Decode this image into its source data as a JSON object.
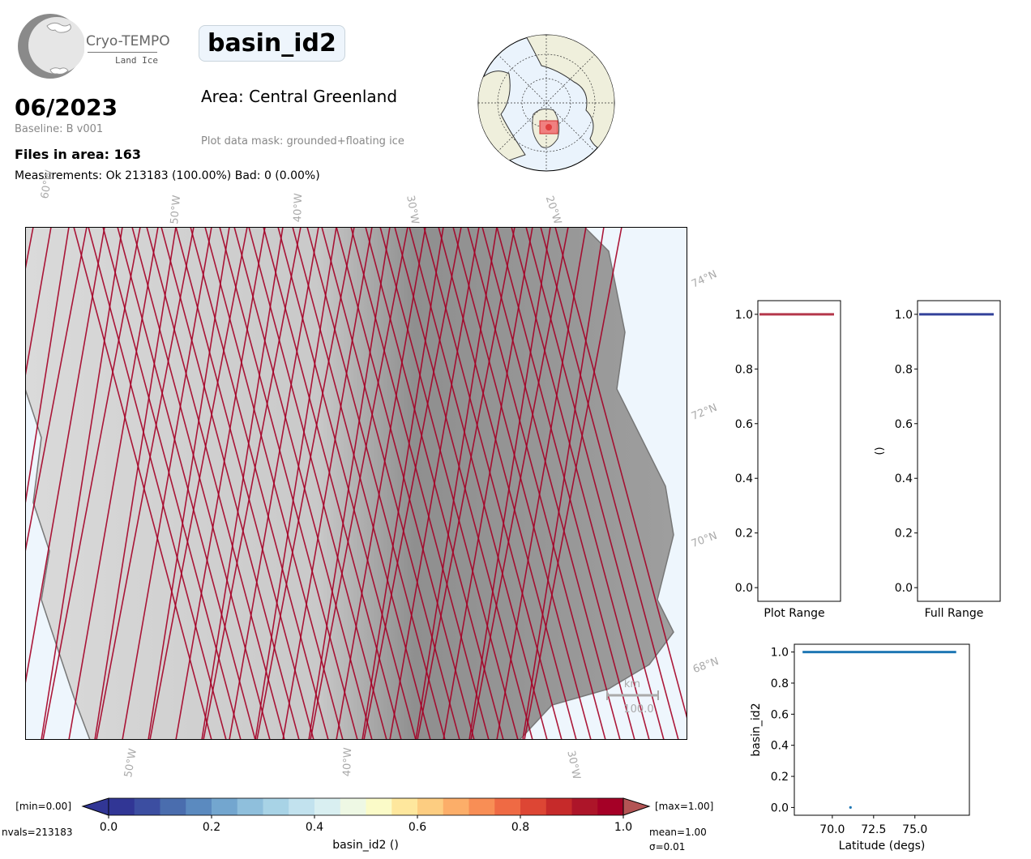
{
  "header": {
    "logo_title": "Cryo-TEMPO",
    "logo_subtitle": "Land Ice",
    "parameter": "basin_id2",
    "date": "06/2023",
    "baseline": "Baseline: B v001",
    "files": "Files in area: 163",
    "measurements": "Measurements: Ok 213183 (100.00%) Bad: 0 (0.00%)",
    "area": "Area: Central Greenland",
    "mask": "Plot data mask: grounded+floating ice"
  },
  "map": {
    "top_lon_labels": [
      "60°W",
      "50°W",
      "40°W",
      "30°W",
      "20°W"
    ],
    "bottom_lon_labels": [
      "50°W",
      "40°W",
      "30°W"
    ],
    "lat_labels": [
      "74°N",
      "72°N",
      "70°N",
      "68°N"
    ],
    "scale_unit": "km",
    "scale_value": "100.0",
    "track_color": "#a50026"
  },
  "colorbar": {
    "min_label": "[min=0.00]",
    "max_label": "[max=1.00]",
    "nvals": "nvals=213183",
    "mean": "mean=1.00",
    "sigma": "σ=0.01",
    "label": "basin_id2 ()",
    "ticks": [
      "0.0",
      "0.2",
      "0.4",
      "0.6",
      "0.8",
      "1.0"
    ],
    "colors": [
      "#313695",
      "#3c4ea1",
      "#4a6dae",
      "#5b8abf",
      "#73a6cf",
      "#8fbfdc",
      "#a8d3e6",
      "#c2e2ee",
      "#d9eff1",
      "#eef8e4",
      "#fbfbc8",
      "#fee79d",
      "#fdcd81",
      "#fcae69",
      "#f88e55",
      "#ef6a44",
      "#dd4634",
      "#c62a2a",
      "#ad1529",
      "#a50026"
    ],
    "under_color": "#313695",
    "over_color": "#b35454"
  },
  "chart_data": [
    {
      "type": "bar",
      "title": "",
      "xlabel": "Plot Range",
      "ylabel": "",
      "categories": [
        "Plot Range"
      ],
      "values": [
        1.0
      ],
      "ylim": [
        -0.05,
        1.05
      ],
      "yticks": [
        "0.0",
        "0.2",
        "0.4",
        "0.6",
        "0.8",
        "1.0"
      ],
      "color": "#b5374a"
    },
    {
      "type": "bar",
      "title": "",
      "xlabel": "Full Range",
      "ylabel": "()",
      "categories": [
        "Full Range"
      ],
      "values": [
        1.0
      ],
      "ylim": [
        -0.05,
        1.05
      ],
      "yticks": [
        "0.0",
        "0.2",
        "0.4",
        "0.6",
        "0.8",
        "1.0"
      ],
      "color": "#33419a"
    },
    {
      "type": "scatter",
      "title": "",
      "xlabel": "Latitude (degs)",
      "ylabel": "basin_id2",
      "xlim": [
        67.7,
        78.3
      ],
      "ylim": [
        -0.05,
        1.05
      ],
      "xticks": [
        "70.0",
        "72.5",
        "75.0"
      ],
      "yticks": [
        "0.0",
        "0.2",
        "0.4",
        "0.6",
        "0.8",
        "1.0"
      ],
      "series": [
        {
          "x": [
            68.2,
            77.5
          ],
          "y": [
            1.0,
            1.0
          ],
          "color": "#1f77b4"
        },
        {
          "x": [
            71.1
          ],
          "y": [
            0.0
          ],
          "color": "#1f77b4"
        }
      ]
    }
  ]
}
